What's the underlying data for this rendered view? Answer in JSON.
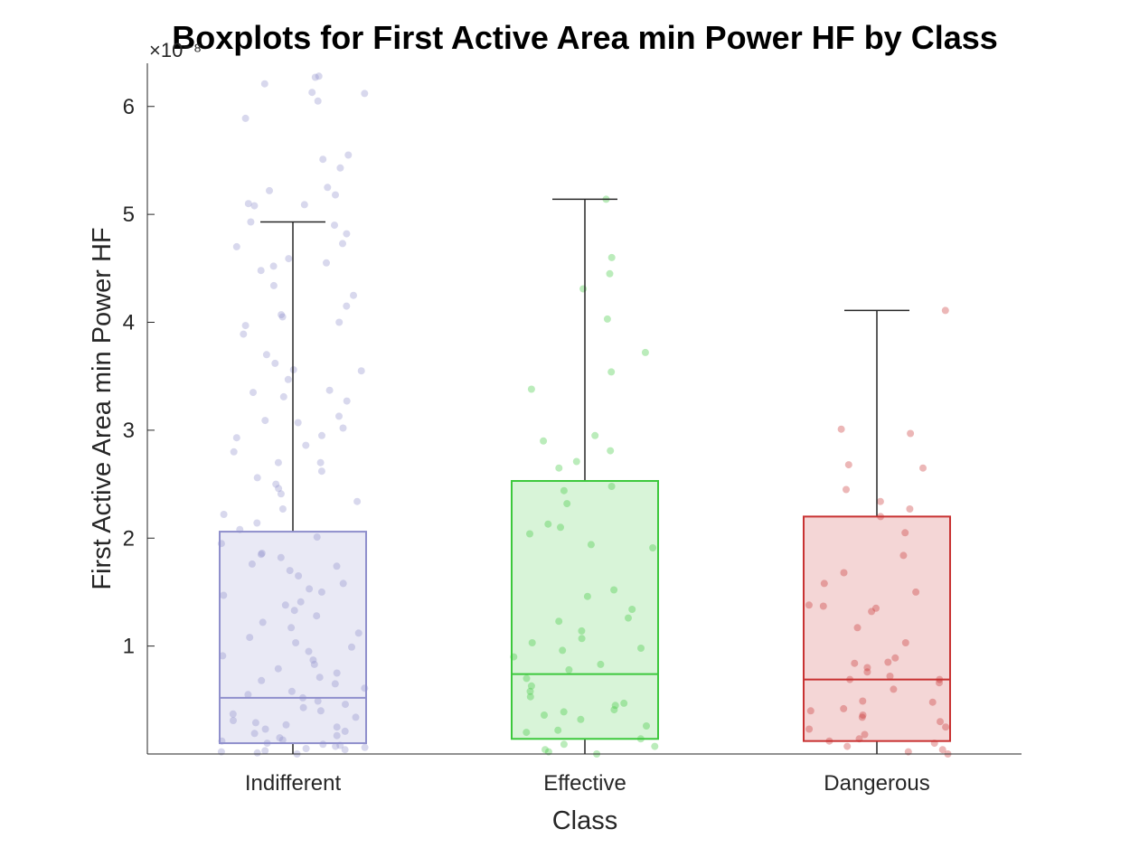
{
  "chart_data": {
    "type": "box",
    "title": "Boxplots for First Active Area min Power HF by Class",
    "xlabel": "Class",
    "ylabel": "First Active Area min Power HF",
    "y_exponent": "×10⁻⁸",
    "ylim": [
      0,
      6.4
    ],
    "y_ticks": [
      1,
      2,
      3,
      4,
      5,
      6
    ],
    "categories": [
      "Indifferent",
      "Effective",
      "Dangerous"
    ],
    "colors": {
      "Indifferent": "#8f8fcc",
      "Effective": "#3cc83c",
      "Dangerous": "#c83232"
    },
    "boxes": [
      {
        "name": "Indifferent",
        "whisker_low": 0,
        "q1": 0.1,
        "median": 0.52,
        "q3": 2.06,
        "whisker_high": 4.93
      },
      {
        "name": "Effective",
        "whisker_low": 0,
        "q1": 0.14,
        "median": 0.74,
        "q3": 2.53,
        "whisker_high": 5.14
      },
      {
        "name": "Dangerous",
        "whisker_low": 0,
        "q1": 0.12,
        "median": 0.69,
        "q3": 2.2,
        "whisker_high": 4.11
      }
    ],
    "points": {
      "Indifferent": [
        6.27,
        6.21,
        6.13,
        6.12,
        6.28,
        6.05,
        5.89,
        5.55,
        5.51,
        5.43,
        5.25,
        5.22,
        5.18,
        5.1,
        5.09,
        5.08,
        4.93,
        4.9,
        4.82,
        4.73,
        4.7,
        4.59,
        4.55,
        4.52,
        4.48,
        4.34,
        4.25,
        4.15,
        4.07,
        4.05,
        4.0,
        3.97,
        3.89,
        3.7,
        3.62,
        3.56,
        3.55,
        3.47,
        3.37,
        3.35,
        3.31,
        3.27,
        3.13,
        3.09,
        3.07,
        3.02,
        2.95,
        2.93,
        2.86,
        2.8,
        2.7,
        2.7,
        2.62,
        2.56,
        2.5,
        2.46,
        2.41,
        2.34,
        2.27,
        2.22,
        2.14,
        2.08,
        2.01,
        1.95,
        1.86,
        1.85,
        1.82,
        1.76,
        1.74,
        1.7,
        1.65,
        1.58,
        1.53,
        1.5,
        1.47,
        1.41,
        1.38,
        1.33,
        1.28,
        1.22,
        1.17,
        1.12,
        1.08,
        1.03,
        0.99,
        0.95,
        0.91,
        0.87,
        0.83,
        0.79,
        0.75,
        0.71,
        0.68,
        0.65,
        0.61,
        0.58,
        0.55,
        0.52,
        0.49,
        0.46,
        0.43,
        0.4,
        0.37,
        0.34,
        0.31,
        0.29,
        0.27,
        0.25,
        0.23,
        0.21,
        0.19,
        0.17,
        0.15,
        0.13,
        0.12,
        0.1,
        0.09,
        0.08,
        0.07,
        0.06,
        0.05,
        0.04,
        0.03,
        0.02,
        0.01,
        0.0
      ],
      "Effective": [
        5.14,
        4.6,
        4.45,
        4.31,
        4.03,
        3.72,
        3.54,
        3.38,
        2.95,
        2.9,
        2.81,
        2.71,
        2.65,
        2.48,
        2.44,
        2.32,
        2.13,
        2.1,
        2.04,
        1.94,
        1.91,
        1.52,
        1.46,
        1.34,
        1.26,
        1.23,
        1.14,
        1.07,
        1.03,
        0.98,
        0.96,
        0.9,
        0.83,
        0.78,
        0.7,
        0.63,
        0.58,
        0.53,
        0.47,
        0.45,
        0.41,
        0.39,
        0.36,
        0.32,
        0.26,
        0.22,
        0.2,
        0.14,
        0.09,
        0.07,
        0.04,
        0.02,
        0.0
      ],
      "Dangerous": [
        4.11,
        3.01,
        2.97,
        2.68,
        2.65,
        2.45,
        2.34,
        2.27,
        2.2,
        2.05,
        1.84,
        1.68,
        1.58,
        1.5,
        1.38,
        1.37,
        1.35,
        1.32,
        1.17,
        1.03,
        0.89,
        0.85,
        0.84,
        0.8,
        0.76,
        0.72,
        0.69,
        0.69,
        0.66,
        0.6,
        0.49,
        0.48,
        0.42,
        0.4,
        0.36,
        0.34,
        0.3,
        0.25,
        0.23,
        0.18,
        0.14,
        0.12,
        0.1,
        0.07,
        0.04,
        0.02,
        0.0
      ]
    }
  }
}
